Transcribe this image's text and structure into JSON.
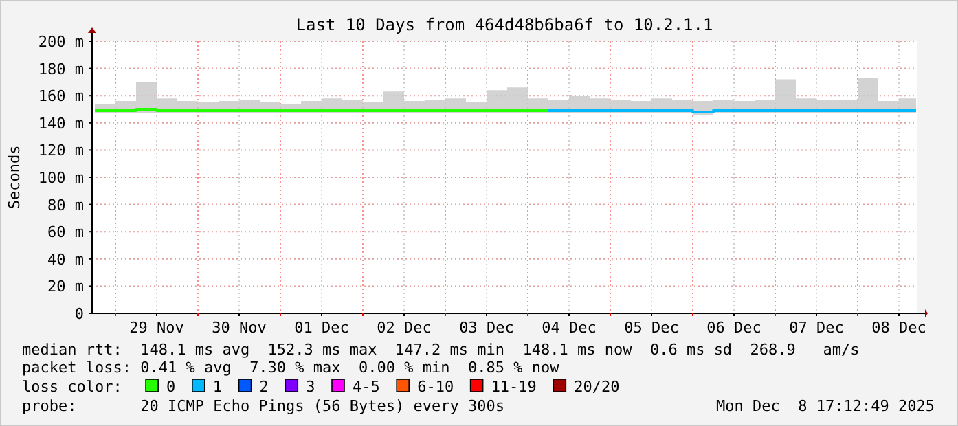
{
  "chart_data": {
    "type": "step",
    "title": "Last 10 Days from 464d48b6ba6f to 10.2.1.1",
    "ylabel": "Seconds",
    "legend_title": "loss color:",
    "legend": "bottom",
    "grid": true,
    "line_style": "solid",
    "marker": "none",
    "x": [
      "2025-11-28T18:00",
      "2025-11-29T00:00",
      "2025-11-29T06:00",
      "2025-11-29T12:00",
      "2025-11-29T18:00",
      "2025-11-30T00:00",
      "2025-11-30T06:00",
      "2025-11-30T12:00",
      "2025-11-30T18:00",
      "2025-12-01T00:00",
      "2025-12-01T06:00",
      "2025-12-01T12:00",
      "2025-12-01T18:00",
      "2025-12-02T00:00",
      "2025-12-02T06:00",
      "2025-12-02T12:00",
      "2025-12-02T18:00",
      "2025-12-03T00:00",
      "2025-12-03T06:00",
      "2025-12-03T12:00",
      "2025-12-03T18:00",
      "2025-12-04T00:00",
      "2025-12-04T06:00",
      "2025-12-04T12:00",
      "2025-12-04T18:00",
      "2025-12-05T00:00",
      "2025-12-05T06:00",
      "2025-12-05T12:00",
      "2025-12-05T18:00",
      "2025-12-06T00:00",
      "2025-12-06T06:00",
      "2025-12-06T12:00",
      "2025-12-06T18:00",
      "2025-12-07T00:00",
      "2025-12-07T06:00",
      "2025-12-07T12:00",
      "2025-12-07T18:00",
      "2025-12-08T00:00",
      "2025-12-08T06:00",
      "2025-12-08T12:00",
      "2025-12-08T17:00"
    ],
    "xlim": [
      "2025-11-28T17:12",
      "2025-12-08T17:12"
    ],
    "xticks": [
      {
        "value": "2025-11-29T00:00",
        "label": null
      },
      {
        "value": "2025-11-29T12:00",
        "label": "29 Nov"
      },
      {
        "value": "2025-11-30T00:00",
        "label": null
      },
      {
        "value": "2025-11-30T12:00",
        "label": "30 Nov"
      },
      {
        "value": "2025-12-01T00:00",
        "label": null
      },
      {
        "value": "2025-12-01T12:00",
        "label": "01 Dec"
      },
      {
        "value": "2025-12-02T00:00",
        "label": null
      },
      {
        "value": "2025-12-02T12:00",
        "label": "02 Dec"
      },
      {
        "value": "2025-12-03T00:00",
        "label": null
      },
      {
        "value": "2025-12-03T12:00",
        "label": "03 Dec"
      },
      {
        "value": "2025-12-04T00:00",
        "label": null
      },
      {
        "value": "2025-12-04T12:00",
        "label": "04 Dec"
      },
      {
        "value": "2025-12-05T00:00",
        "label": null
      },
      {
        "value": "2025-12-05T12:00",
        "label": "05 Dec"
      },
      {
        "value": "2025-12-06T00:00",
        "label": null
      },
      {
        "value": "2025-12-06T12:00",
        "label": "06 Dec"
      },
      {
        "value": "2025-12-07T00:00",
        "label": null
      },
      {
        "value": "2025-12-07T12:00",
        "label": "07 Dec"
      },
      {
        "value": "2025-12-08T00:00",
        "label": null
      },
      {
        "value": "2025-12-08T12:00",
        "label": "08 Dec"
      }
    ],
    "ylim": [
      0,
      200
    ],
    "yticks": [
      0,
      {
        "value": 20,
        "label": "20 m"
      },
      {
        "value": 40,
        "label": "40 m"
      },
      {
        "value": 60,
        "label": "60 m"
      },
      {
        "value": 80,
        "label": "80 m"
      },
      {
        "value": 100,
        "label": "100 m"
      },
      {
        "value": 120,
        "label": "120 m"
      },
      {
        "value": 140,
        "label": "140 m"
      },
      {
        "value": 160,
        "label": "160 m"
      },
      {
        "value": 180,
        "label": "180 m"
      },
      {
        "value": 200,
        "label": "200 m"
      }
    ],
    "series": [
      {
        "name": "0",
        "color": "#26ff00",
        "values": [
          149,
          149,
          150,
          149,
          149,
          149,
          149,
          149,
          149,
          149,
          149,
          149,
          149,
          149,
          149,
          149,
          149,
          149,
          149,
          149,
          149,
          149,
          149,
          null,
          null,
          null,
          null,
          null,
          null,
          null,
          null,
          null,
          null,
          null,
          null,
          null,
          null,
          null,
          null,
          null,
          null
        ],
        "lower": [
          147,
          147,
          147,
          147,
          147,
          147,
          147,
          147,
          147,
          147,
          147,
          147,
          147,
          147,
          147,
          147,
          147,
          147,
          147,
          147,
          147,
          147,
          147,
          null,
          null,
          null,
          null,
          null,
          null,
          null,
          null,
          null,
          null,
          null,
          null,
          null,
          null,
          null,
          null,
          null,
          null
        ],
        "upper": [
          154,
          156,
          170,
          158,
          156,
          155,
          156,
          157,
          155,
          154,
          156,
          158,
          157,
          155,
          163,
          156,
          157,
          158,
          155,
          164,
          166,
          158,
          157,
          null,
          null,
          null,
          null,
          null,
          null,
          null,
          null,
          null,
          null,
          null,
          null,
          null,
          null,
          null,
          null,
          null,
          null
        ]
      },
      {
        "name": "1",
        "color": "#00b8ff",
        "values": [
          null,
          null,
          null,
          null,
          null,
          null,
          null,
          null,
          null,
          null,
          null,
          null,
          null,
          null,
          null,
          null,
          null,
          null,
          null,
          null,
          null,
          null,
          149,
          149,
          149,
          149,
          149,
          149,
          149,
          148,
          149,
          149,
          149,
          149,
          149,
          149,
          149,
          149,
          149,
          149,
          149
        ],
        "lower": [
          null,
          null,
          null,
          null,
          null,
          null,
          null,
          null,
          null,
          null,
          null,
          null,
          null,
          null,
          null,
          null,
          null,
          null,
          null,
          null,
          null,
          null,
          147,
          147,
          147,
          147,
          147,
          147,
          147,
          146,
          147,
          147,
          147,
          147,
          147,
          147,
          147,
          147,
          147,
          147,
          147
        ],
        "upper": [
          null,
          null,
          null,
          null,
          null,
          null,
          null,
          null,
          null,
          null,
          null,
          null,
          null,
          null,
          null,
          null,
          null,
          null,
          null,
          null,
          null,
          null,
          157,
          160,
          158,
          157,
          156,
          158,
          157,
          156,
          157,
          156,
          157,
          172,
          158,
          157,
          157,
          173,
          156,
          158,
          156
        ]
      },
      {
        "name": "2",
        "color": "#0059ff",
        "values": [
          null,
          null,
          null,
          null,
          null,
          null,
          null,
          null,
          null,
          null,
          null,
          null,
          null,
          null,
          null,
          null,
          null,
          null,
          null,
          null,
          null,
          null,
          null,
          null,
          null,
          null,
          null,
          null,
          null,
          null,
          null,
          null,
          null,
          null,
          null,
          null,
          null,
          null,
          null,
          null,
          null
        ]
      },
      {
        "name": "3",
        "color": "#7e00ff",
        "values": [
          null,
          null,
          null,
          null,
          null,
          null,
          null,
          null,
          null,
          null,
          null,
          null,
          null,
          null,
          null,
          null,
          null,
          null,
          null,
          null,
          null,
          null,
          null,
          null,
          null,
          null,
          null,
          null,
          null,
          null,
          null,
          null,
          null,
          null,
          null,
          null,
          null,
          null,
          null,
          null,
          null
        ]
      },
      {
        "name": "4-5",
        "color": "#ff00ff",
        "values": [
          null,
          null,
          null,
          null,
          null,
          null,
          null,
          null,
          null,
          null,
          null,
          null,
          null,
          null,
          null,
          null,
          null,
          null,
          null,
          null,
          null,
          null,
          null,
          null,
          null,
          null,
          null,
          null,
          null,
          null,
          null,
          null,
          null,
          null,
          null,
          null,
          null,
          null,
          null,
          null,
          null
        ]
      },
      {
        "name": "6-10",
        "color": "#ff5500",
        "values": [
          null,
          null,
          null,
          null,
          null,
          null,
          null,
          null,
          null,
          null,
          null,
          null,
          null,
          null,
          null,
          null,
          null,
          null,
          null,
          null,
          null,
          null,
          null,
          null,
          null,
          null,
          null,
          null,
          null,
          null,
          null,
          null,
          null,
          null,
          null,
          null,
          null,
          null,
          null,
          null,
          null
        ]
      },
      {
        "name": "11-19",
        "color": "#ff0000",
        "values": [
          null,
          null,
          null,
          null,
          null,
          null,
          null,
          null,
          null,
          null,
          null,
          null,
          null,
          null,
          null,
          null,
          null,
          null,
          null,
          null,
          null,
          null,
          null,
          null,
          null,
          null,
          null,
          null,
          null,
          null,
          null,
          null,
          null,
          null,
          null,
          null,
          null,
          null,
          null,
          null,
          null
        ]
      },
      {
        "name": "20/20",
        "color": "#a10000",
        "values": [
          null,
          null,
          null,
          null,
          null,
          null,
          null,
          null,
          null,
          null,
          null,
          null,
          null,
          null,
          null,
          null,
          null,
          null,
          null,
          null,
          null,
          null,
          null,
          null,
          null,
          null,
          null,
          null,
          null,
          null,
          null,
          null,
          null,
          null,
          null,
          null,
          null,
          null,
          null,
          null,
          null
        ]
      }
    ],
    "annotations": [
      "median rtt:  148.1 ms avg  152.3 ms max  147.2 ms min  148.1 ms now  0.6 ms sd  268.9   am/s",
      "packet loss: 0.41 % avg  7.30 % max  0.00 % min  0.85 % now",
      "probe:       20 ICMP Echo Pings (56 Bytes) every 300s",
      "Mon Dec  8 17:12:49 2025"
    ]
  }
}
